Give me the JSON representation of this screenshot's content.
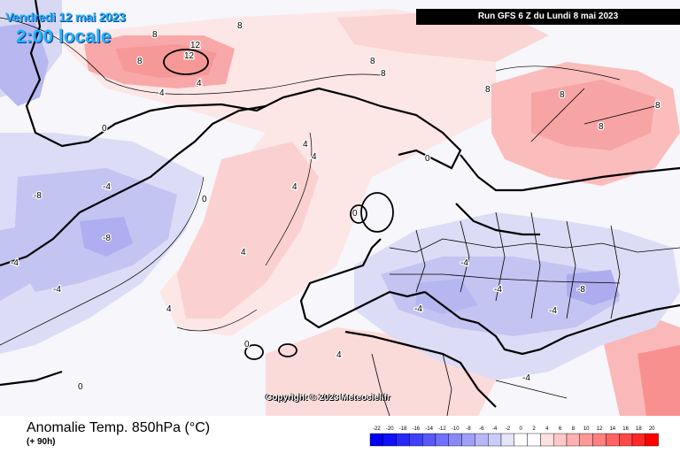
{
  "header": {
    "date": "Vendredi 12 mai 2023",
    "local_time": "2:00 locale",
    "run": "Run GFS 6 Z du Lundi 8 mai 2023"
  },
  "footer": {
    "variable": "Anomalie Temp. 850hPa (°C)",
    "lead": "(+ 90h)",
    "copyright": "Copyright © 2023 Meteociel.fr"
  },
  "legend": {
    "ticks": [
      "-22",
      "-20",
      "-18",
      "-16",
      "-14",
      "-12",
      "-10",
      "-8",
      "-6",
      "-4",
      "-2",
      "0",
      "2",
      "4",
      "6",
      "8",
      "10",
      "12",
      "14",
      "16",
      "18",
      "20"
    ],
    "colors": [
      "#0000f0",
      "#1010f8",
      "#2828f8",
      "#4040f8",
      "#5858f8",
      "#7070f8",
      "#8888f8",
      "#a0a0f8",
      "#b8b8f8",
      "#ccccf8",
      "#e4e4fa",
      "#ffffff",
      "#ffffff",
      "#ffe0e0",
      "#ffc8c8",
      "#ffb0b0",
      "#ff9898",
      "#ff8080",
      "#ff6464",
      "#ff4848",
      "#ff2828",
      "#ff0000"
    ]
  },
  "map_labels": [
    {
      "text": "12"
    },
    {
      "text": "12"
    },
    {
      "text": "8"
    },
    {
      "text": "8"
    },
    {
      "text": "8"
    },
    {
      "text": "8"
    },
    {
      "text": "8"
    },
    {
      "text": "8"
    },
    {
      "text": "8"
    },
    {
      "text": "4"
    },
    {
      "text": "4"
    },
    {
      "text": "4"
    },
    {
      "text": "4"
    },
    {
      "text": "4"
    },
    {
      "text": "4"
    },
    {
      "text": "4"
    },
    {
      "text": "0"
    },
    {
      "text": "0"
    },
    {
      "text": "0"
    },
    {
      "text": "0"
    },
    {
      "text": "0"
    },
    {
      "text": "0"
    },
    {
      "text": "-4"
    },
    {
      "text": "-4"
    },
    {
      "text": "-4"
    },
    {
      "text": "-4"
    },
    {
      "text": "-4"
    },
    {
      "text": "-4"
    },
    {
      "text": "-8"
    },
    {
      "text": "-8"
    },
    {
      "text": "-8"
    },
    {
      "text": "-4"
    },
    {
      "text": "-4"
    },
    {
      "text": "4"
    },
    {
      "text": "8"
    },
    {
      "text": "8"
    }
  ]
}
